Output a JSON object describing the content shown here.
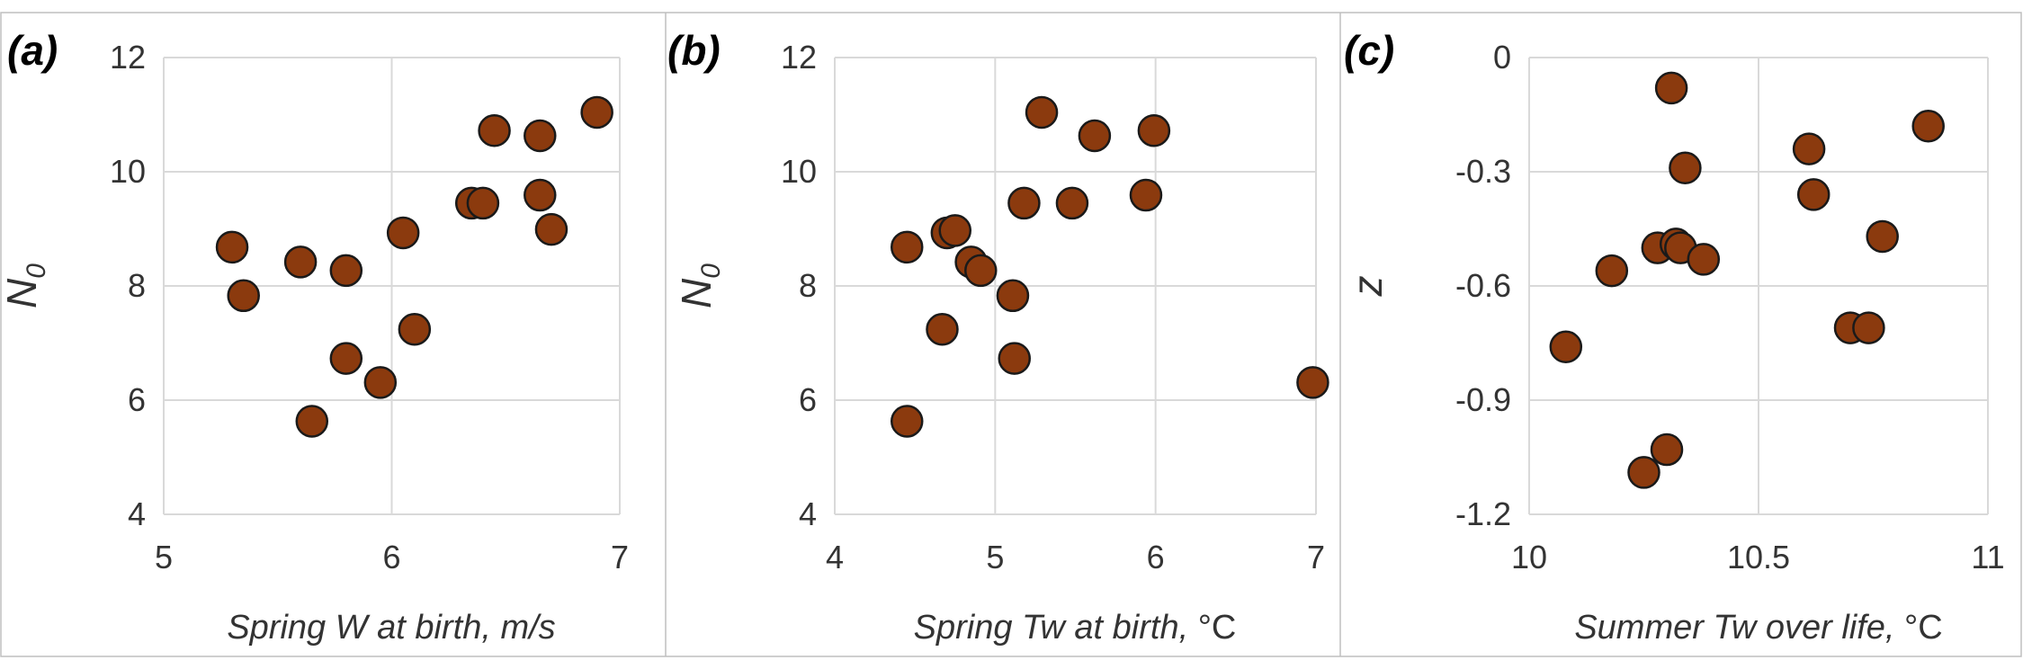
{
  "chart_data": [
    {
      "type": "scatter",
      "panel_label": "(a)",
      "xlabel": "Spring W at birth, m/s",
      "ylabel": "N",
      "ylabel_sub": "0",
      "xlim": [
        5,
        7
      ],
      "ylim": [
        4,
        12
      ],
      "xticks": [
        "5",
        "6",
        "7"
      ],
      "yticks": [
        "4",
        "6",
        "8",
        "10",
        "12"
      ],
      "grid": true,
      "marker_color": "#8b3a0e",
      "points": [
        {
          "x": 5.3,
          "y": 8.68
        },
        {
          "x": 5.35,
          "y": 7.83
        },
        {
          "x": 5.6,
          "y": 8.42
        },
        {
          "x": 5.65,
          "y": 5.63
        },
        {
          "x": 5.8,
          "y": 8.27
        },
        {
          "x": 5.8,
          "y": 6.73
        },
        {
          "x": 5.95,
          "y": 6.31
        },
        {
          "x": 6.05,
          "y": 8.93
        },
        {
          "x": 6.1,
          "y": 7.24
        },
        {
          "x": 6.35,
          "y": 9.45
        },
        {
          "x": 6.4,
          "y": 9.45
        },
        {
          "x": 6.45,
          "y": 10.72
        },
        {
          "x": 6.65,
          "y": 10.63
        },
        {
          "x": 6.65,
          "y": 9.59
        },
        {
          "x": 6.7,
          "y": 8.99
        },
        {
          "x": 6.9,
          "y": 11.04
        }
      ]
    },
    {
      "type": "scatter",
      "panel_label": "(b)",
      "xlabel": "Spring Tw at birth, °C",
      "ylabel": "N",
      "ylabel_sub": "0",
      "xlim": [
        4,
        7
      ],
      "ylim": [
        4,
        12
      ],
      "xticks": [
        "4",
        "5",
        "6",
        "7"
      ],
      "yticks": [
        "4",
        "6",
        "8",
        "10",
        "12"
      ],
      "grid": true,
      "marker_color": "#8b3a0e",
      "points": [
        {
          "x": 4.45,
          "y": 8.68
        },
        {
          "x": 4.45,
          "y": 5.63
        },
        {
          "x": 4.67,
          "y": 7.24
        },
        {
          "x": 4.7,
          "y": 8.93
        },
        {
          "x": 4.75,
          "y": 8.97
        },
        {
          "x": 4.85,
          "y": 8.42
        },
        {
          "x": 4.91,
          "y": 8.27
        },
        {
          "x": 5.11,
          "y": 7.83
        },
        {
          "x": 5.12,
          "y": 6.73
        },
        {
          "x": 5.18,
          "y": 9.45
        },
        {
          "x": 5.29,
          "y": 11.04
        },
        {
          "x": 5.48,
          "y": 9.45
        },
        {
          "x": 5.62,
          "y": 10.63
        },
        {
          "x": 5.94,
          "y": 9.59
        },
        {
          "x": 5.99,
          "y": 10.72
        },
        {
          "x": 6.98,
          "y": 6.31
        }
      ]
    },
    {
      "type": "scatter",
      "panel_label": "(c)",
      "xlabel": "Summer Tw over life, °C",
      "ylabel": "z",
      "ylabel_sub": "",
      "xlim": [
        10,
        11
      ],
      "ylim": [
        -1.2,
        0
      ],
      "xticks": [
        "10",
        "10.5",
        "11"
      ],
      "yticks": [
        "-1.2",
        "-0.9",
        "-0.6",
        "-0.3",
        "0"
      ],
      "grid": true,
      "marker_color": "#8b3a0e",
      "points": [
        {
          "x": 10.08,
          "y": -0.76
        },
        {
          "x": 10.18,
          "y": -0.56
        },
        {
          "x": 10.25,
          "y": -1.09
        },
        {
          "x": 10.28,
          "y": -0.5
        },
        {
          "x": 10.3,
          "y": -1.03
        },
        {
          "x": 10.31,
          "y": -0.08
        },
        {
          "x": 10.32,
          "y": -0.49
        },
        {
          "x": 10.33,
          "y": -0.5
        },
        {
          "x": 10.34,
          "y": -0.29
        },
        {
          "x": 10.38,
          "y": -0.53
        },
        {
          "x": 10.61,
          "y": -0.24
        },
        {
          "x": 10.62,
          "y": -0.36
        },
        {
          "x": 10.7,
          "y": -0.71
        },
        {
          "x": 10.74,
          "y": -0.71
        },
        {
          "x": 10.77,
          "y": -0.47
        },
        {
          "x": 10.87,
          "y": -0.18
        }
      ]
    }
  ]
}
